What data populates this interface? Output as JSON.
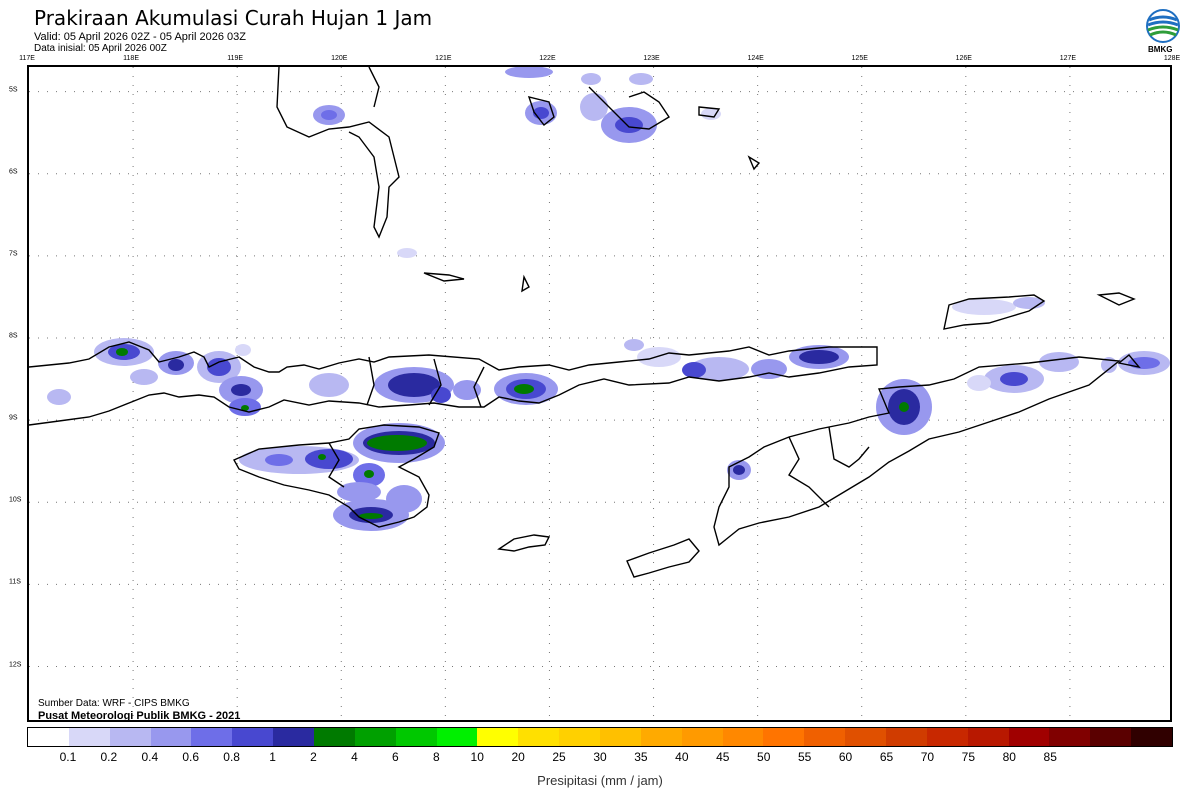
{
  "header": {
    "title": "Prakiraan Akumulasi Curah Hujan 1 Jam",
    "valid": "Valid: 05 April 2026 02Z - 05 April 2026 03Z",
    "initial": "Data inisial: 05 April 2026 00Z"
  },
  "logo": {
    "text": "BMKG",
    "colors": [
      "#1f6fc1",
      "#2e9d3a"
    ]
  },
  "map": {
    "lon_labels": [
      "117E",
      "118E",
      "119E",
      "120E",
      "121E",
      "122E",
      "123E",
      "124E",
      "125E",
      "126E",
      "127E",
      "128E"
    ],
    "lat_labels": [
      "5S",
      "6S",
      "7S",
      "8S",
      "9S",
      "10S",
      "11S",
      "12S"
    ],
    "bounds": {
      "lon_min": 117,
      "lon_max": 128,
      "lat_top": -4.7,
      "lat_bottom": -12.7
    }
  },
  "footer": {
    "source": "Sumber Data: WRF - CIPS BMKG",
    "center": "Pusat Meteorologi Publik BMKG - 2021"
  },
  "legend": {
    "colors": [
      "#ffffff",
      "#d8d8f8",
      "#b8b8f2",
      "#9898ee",
      "#6e6ee8",
      "#4848d0",
      "#2a2aa0",
      "#007a00",
      "#00a000",
      "#00c800",
      "#00f000",
      "#ffff00",
      "#ffe000",
      "#ffd000",
      "#ffc000",
      "#ffaa00",
      "#ff9a00",
      "#ff8800",
      "#ff7400",
      "#f06000",
      "#e05000",
      "#d03c00",
      "#c82800",
      "#b81800",
      "#a00000",
      "#800000",
      "#5a0000",
      "#300000"
    ],
    "labels": [
      "0.1",
      "0.2",
      "0.4",
      "0.6",
      "0.8",
      "1",
      "2",
      "4",
      "6",
      "8",
      "10",
      "20",
      "25",
      "30",
      "35",
      "40",
      "45",
      "50",
      "55",
      "60",
      "65",
      "70",
      "75",
      "80",
      "85"
    ],
    "axis_title": "Presipitasi (mm / jam)"
  }
}
